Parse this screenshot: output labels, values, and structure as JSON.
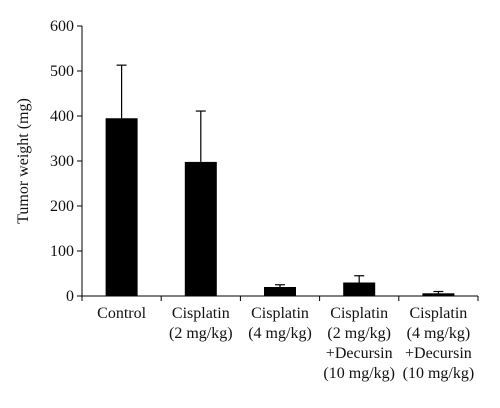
{
  "chart_data": {
    "type": "bar",
    "title": "",
    "xlabel": "",
    "ylabel": "Tumor weight (mg)",
    "ylim": [
      0,
      600
    ],
    "yticks": [
      0,
      100,
      200,
      300,
      400,
      500,
      600
    ],
    "grid": false,
    "legend": "none",
    "categories": [
      [
        "Control"
      ],
      [
        "Cisplatin",
        "(2 mg/kg)"
      ],
      [
        "Cisplatin",
        "(4 mg/kg)"
      ],
      [
        "Cisplatin",
        "(2 mg/kg)",
        "+Decursin",
        "(10 mg/kg)"
      ],
      [
        "Cisplatin",
        "(4 mg/kg)",
        "+Decursin",
        "(10 mg/kg)"
      ]
    ],
    "values": [
      395,
      298,
      20,
      30,
      6
    ],
    "errors": [
      118,
      113,
      5,
      15,
      4
    ],
    "bar_color": "#000000"
  }
}
